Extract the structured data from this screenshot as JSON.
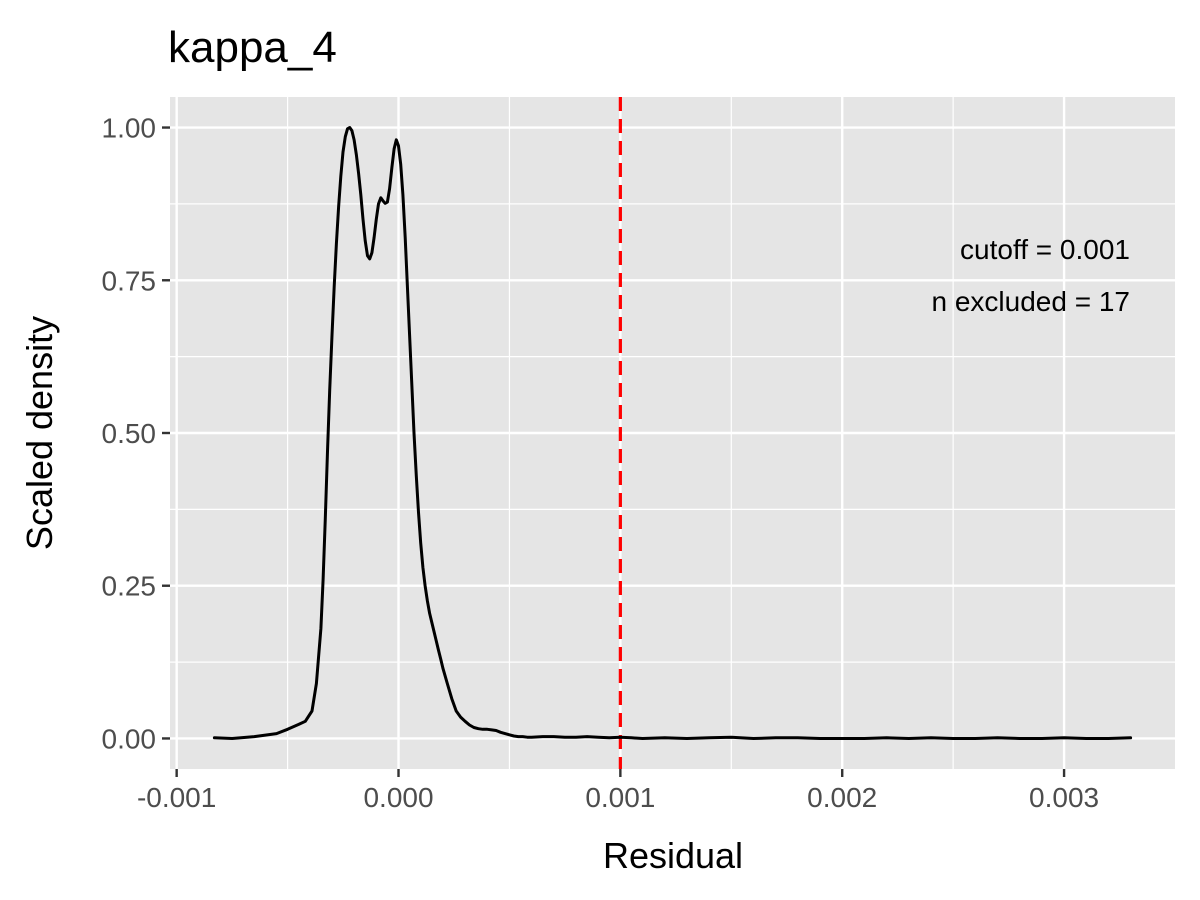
{
  "chart_data": {
    "type": "line",
    "title": "kappa_4",
    "xlabel": "Residual",
    "ylabel": "Scaled density",
    "xlim": [
      -0.00103,
      0.0035
    ],
    "ylim": [
      -0.05,
      1.05
    ],
    "x_ticks": [
      -0.001,
      0.0,
      0.001,
      0.002,
      0.003
    ],
    "x_tick_labels": [
      "-0.001",
      "0.000",
      "0.001",
      "0.002",
      "0.003"
    ],
    "y_ticks": [
      0.0,
      0.25,
      0.5,
      0.75,
      1.0
    ],
    "y_tick_labels": [
      "0.00",
      "0.25",
      "0.50",
      "0.75",
      "1.00"
    ],
    "grid": true,
    "series": [
      {
        "color": "#000000",
        "x": [
          -0.00083,
          -0.00075,
          -0.00065,
          -0.00055,
          -0.0005,
          -0.00045,
          -0.00042,
          -0.00039,
          -0.00037,
          -0.00035,
          -0.00034,
          -0.00033,
          -0.00032,
          -0.00031,
          -0.0003,
          -0.00029,
          -0.00028,
          -0.00027,
          -0.00026,
          -0.00025,
          -0.00024,
          -0.00023,
          -0.00022,
          -0.00021,
          -0.0002,
          -0.00019,
          -0.00018,
          -0.00017,
          -0.00016,
          -0.00015,
          -0.00014,
          -0.00013,
          -0.00012,
          -0.00011,
          -0.0001,
          -9e-05,
          -8e-05,
          -7e-05,
          -6e-05,
          -5e-05,
          -4e-05,
          -3e-05,
          -2e-05,
          -1e-05,
          0.0,
          1e-05,
          2e-05,
          3e-05,
          4e-05,
          5e-05,
          6e-05,
          7e-05,
          8e-05,
          9e-05,
          0.0001,
          0.00011,
          0.00012,
          0.00013,
          0.00014,
          0.00015,
          0.00016,
          0.00017,
          0.00018,
          0.00019,
          0.0002,
          0.00022,
          0.00024,
          0.00026,
          0.00028,
          0.0003,
          0.00032,
          0.00034,
          0.00036,
          0.00038,
          0.0004,
          0.00042,
          0.00044,
          0.00046,
          0.00048,
          0.0005,
          0.00052,
          0.00054,
          0.00056,
          0.00058,
          0.0006,
          0.00065,
          0.0007,
          0.00075,
          0.0008,
          0.00085,
          0.0009,
          0.00095,
          0.001,
          0.00105,
          0.0011,
          0.0012,
          0.0013,
          0.0014,
          0.0015,
          0.0016,
          0.0017,
          0.0018,
          0.0019,
          0.002,
          0.0021,
          0.0022,
          0.0023,
          0.0024,
          0.0025,
          0.0026,
          0.0027,
          0.0028,
          0.0029,
          0.003,
          0.0031,
          0.0032,
          0.0033
        ],
        "y": [
          0.001,
          0.0,
          0.003,
          0.008,
          0.015,
          0.023,
          0.028,
          0.045,
          0.09,
          0.18,
          0.26,
          0.36,
          0.47,
          0.57,
          0.66,
          0.74,
          0.81,
          0.87,
          0.92,
          0.96,
          0.985,
          0.998,
          1.0,
          0.995,
          0.98,
          0.955,
          0.925,
          0.89,
          0.85,
          0.815,
          0.79,
          0.785,
          0.795,
          0.82,
          0.85,
          0.875,
          0.885,
          0.88,
          0.876,
          0.878,
          0.9,
          0.935,
          0.965,
          0.98,
          0.97,
          0.94,
          0.89,
          0.82,
          0.74,
          0.66,
          0.58,
          0.5,
          0.43,
          0.37,
          0.32,
          0.28,
          0.25,
          0.225,
          0.205,
          0.19,
          0.175,
          0.16,
          0.145,
          0.13,
          0.115,
          0.09,
          0.065,
          0.045,
          0.035,
          0.028,
          0.022,
          0.018,
          0.016,
          0.015,
          0.015,
          0.014,
          0.013,
          0.01,
          0.008,
          0.006,
          0.004,
          0.003,
          0.003,
          0.002,
          0.002,
          0.003,
          0.003,
          0.002,
          0.002,
          0.003,
          0.002,
          0.001,
          0.002,
          0.001,
          0.0,
          0.001,
          0.0,
          0.001,
          0.002,
          0.0,
          0.001,
          0.001,
          0.0,
          0.0,
          0.0,
          0.001,
          0.0,
          0.001,
          0.0,
          0.0,
          0.001,
          0.0,
          0.0,
          0.001,
          0.0,
          0.0,
          0.001
        ]
      }
    ],
    "cutoff_line": {
      "x": 0.001,
      "color": "#ff0000",
      "style": "dashed"
    },
    "annotations": [
      "cutoff = 0.001",
      "n excluded = 17"
    ],
    "background": "#e5e5e5",
    "grid_color": "#ffffff"
  }
}
